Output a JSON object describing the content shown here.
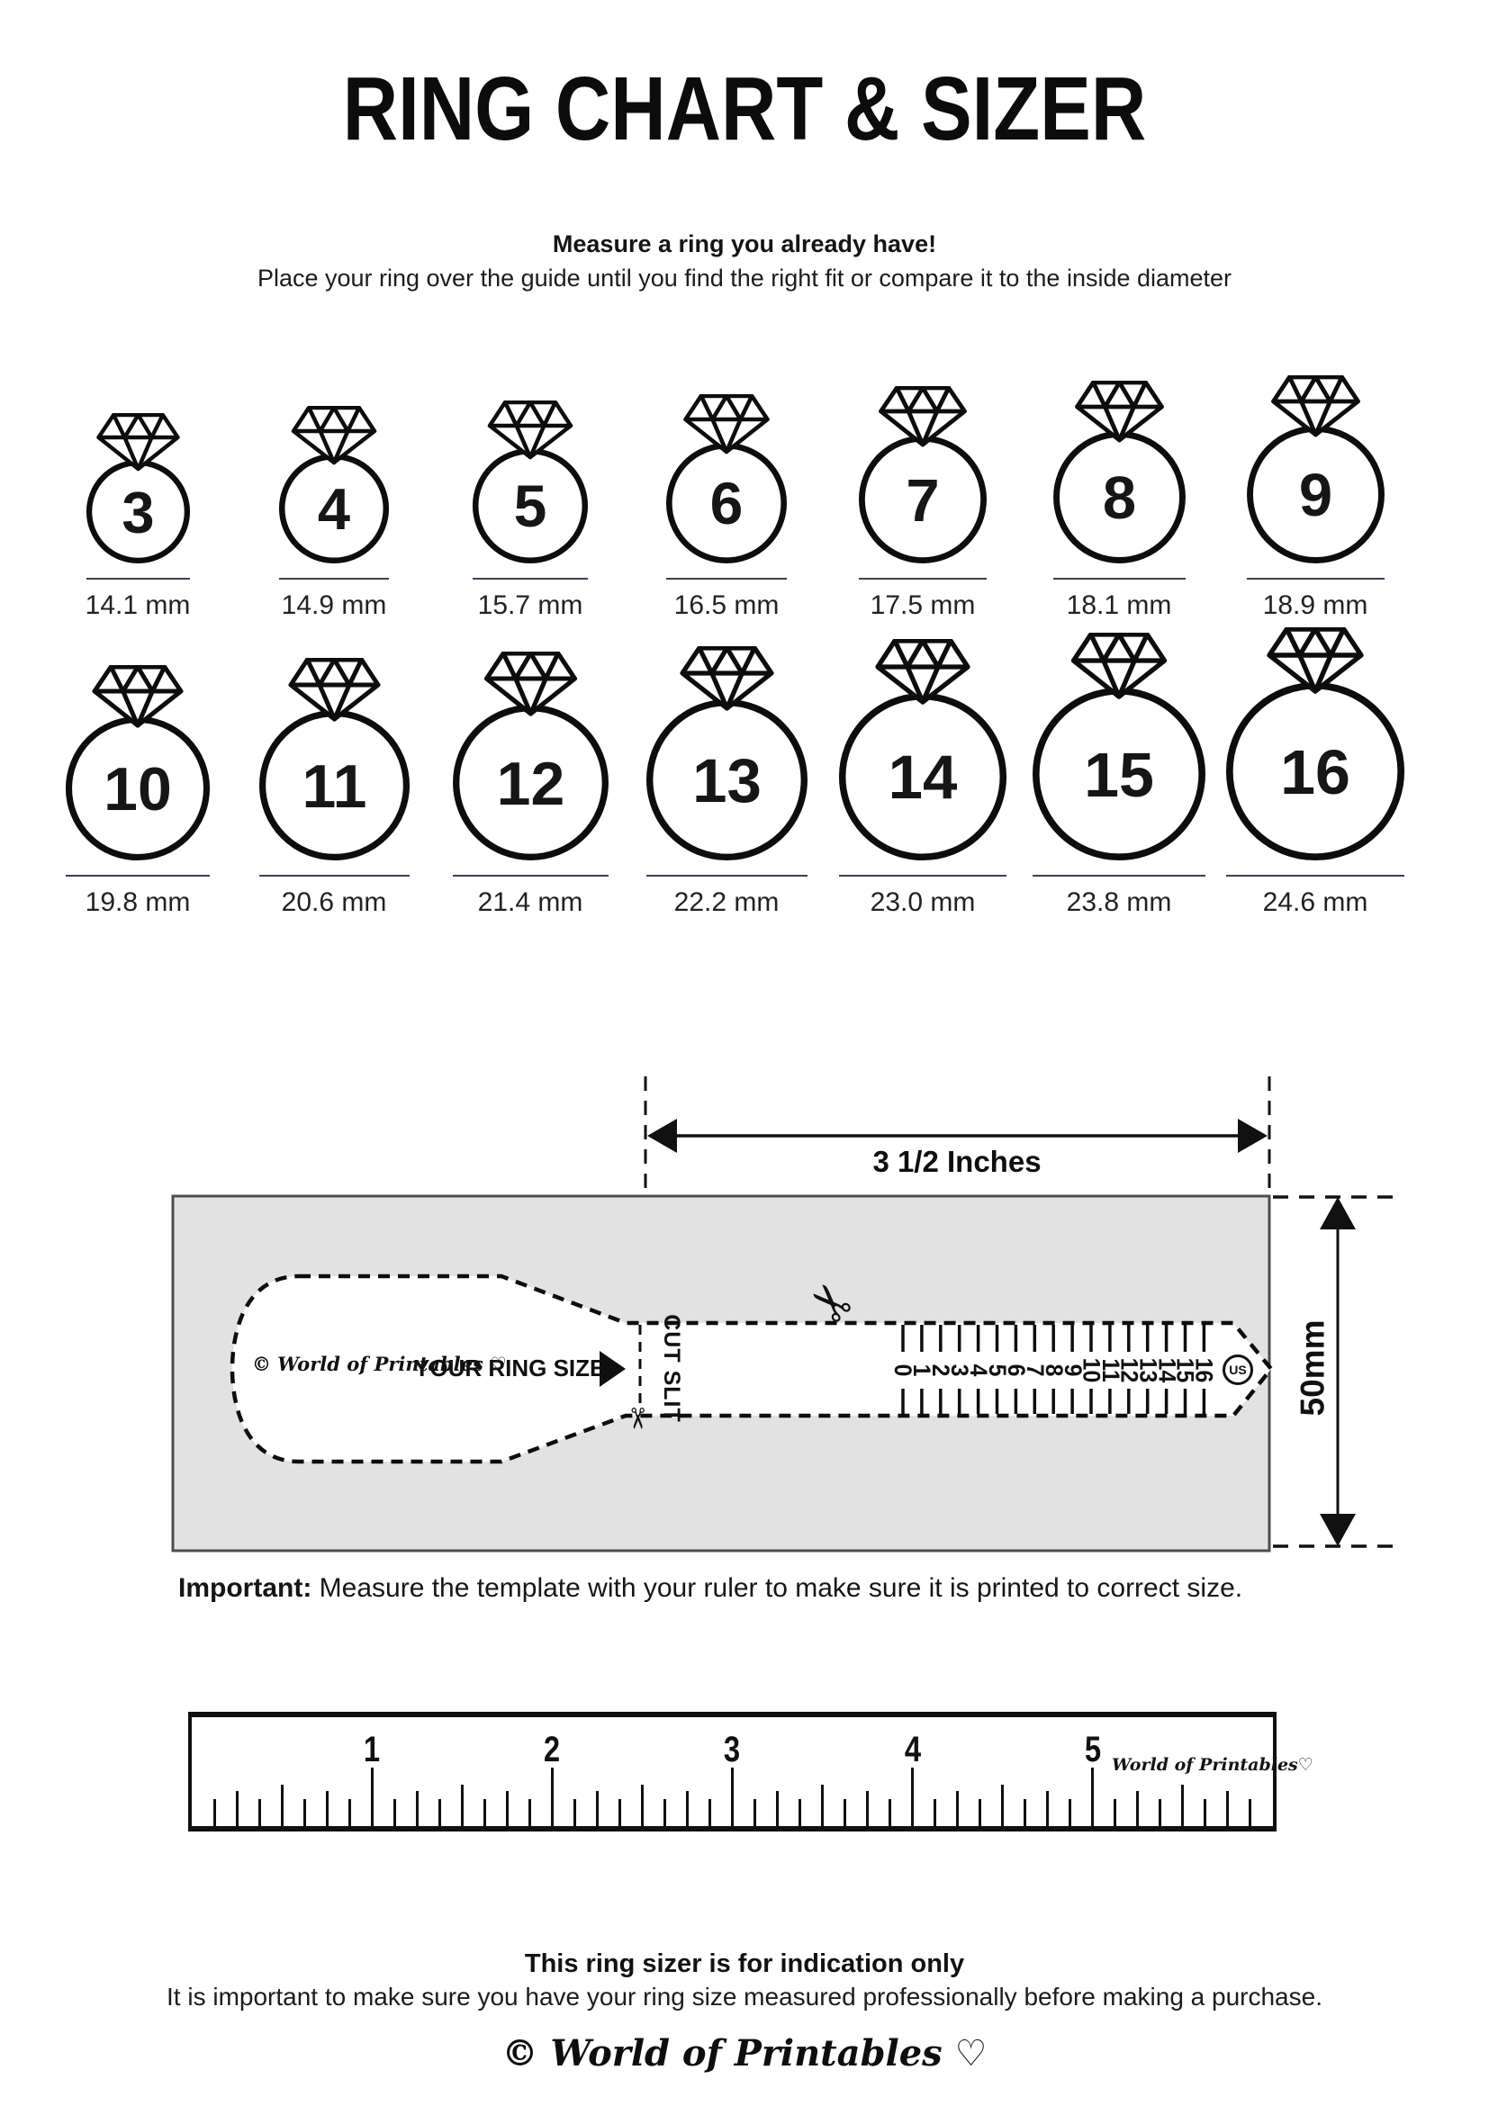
{
  "header": {
    "title": "RING CHART & SIZER",
    "subtitle": "Measure a ring you already have!",
    "instruction": "Place your ring over the guide until you find the right fit or compare it to the inside diameter"
  },
  "ring_rows": [
    {
      "rings": [
        {
          "size": "3",
          "diameter": "14.1 mm"
        },
        {
          "size": "4",
          "diameter": "14.9 mm"
        },
        {
          "size": "5",
          "diameter": "15.7 mm"
        },
        {
          "size": "6",
          "diameter": "16.5 mm"
        },
        {
          "size": "7",
          "diameter": "17.5 mm"
        },
        {
          "size": "8",
          "diameter": "18.1 mm"
        },
        {
          "size": "9",
          "diameter": "18.9 mm"
        }
      ]
    },
    {
      "rings": [
        {
          "size": "10",
          "diameter": "19.8 mm"
        },
        {
          "size": "11",
          "diameter": "20.6 mm"
        },
        {
          "size": "12",
          "diameter": "21.4 mm"
        },
        {
          "size": "13",
          "diameter": "22.2 mm"
        },
        {
          "size": "14",
          "diameter": "23.0 mm"
        },
        {
          "size": "15",
          "diameter": "23.8 mm"
        },
        {
          "size": "16",
          "diameter": "24.6 mm"
        }
      ]
    }
  ],
  "sizer": {
    "width_label": "3 1/2 Inches",
    "height_label": "50mm",
    "brand": "© World of Printables ♡",
    "your_ring_size_label": "YOUR RING SIZE",
    "cut_slit_label": "CUT SLIT",
    "scale_numbers": [
      "0",
      "1",
      "2",
      "3",
      "4",
      "5",
      "6",
      "7",
      "8",
      "9",
      "10",
      "11",
      "12",
      "13",
      "14",
      "15",
      "16"
    ],
    "us_label": "US",
    "scissors_icon": "✂"
  },
  "important": {
    "label": "Important:",
    "text": " Measure the template with your ruler to make sure it is printed to correct size."
  },
  "ruler": {
    "numbers": [
      "1",
      "2",
      "3",
      "4",
      "5"
    ],
    "brand": "World of Printables♡"
  },
  "footer": {
    "bold_line": "This ring sizer is for indication only",
    "text_line": "It is important to make sure you have your ring size measured professionally before making a purchase.",
    "brand": "© World of Printables ♡"
  },
  "colors": {
    "template_background": "#e2e2e2",
    "template_border": "#4d4d4d",
    "ink": "#111111",
    "size_underline": "#3d3d5c"
  }
}
